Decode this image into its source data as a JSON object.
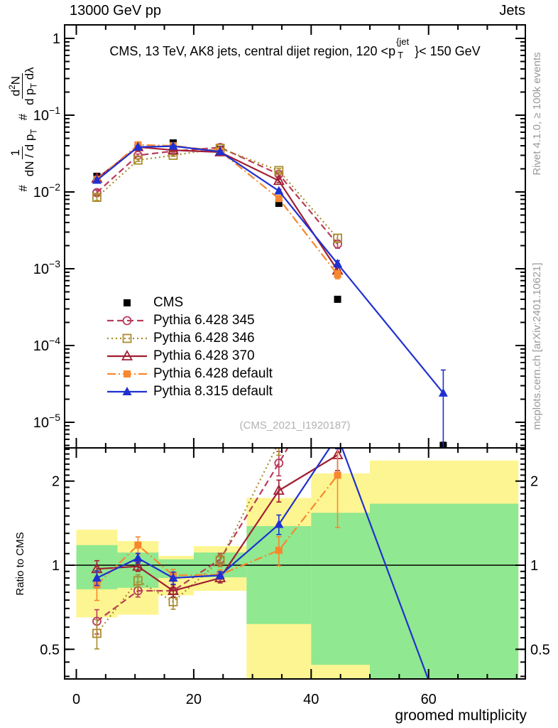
{
  "header": {
    "beam": "13000 GeV pp",
    "process": "Jets"
  },
  "title": {
    "pre": "CMS, 13 TeV, AK8 jets, central dijet region, 120 <p",
    "sup": "{jet",
    "sub": "T",
    "post": "}< 150 GeV"
  },
  "ylabel": {
    "hash1": "#",
    "num1": "1",
    "den1_a": "dN / d p",
    "den1_sub": "T",
    "hash2": "#",
    "num2_a": "d",
    "num2_sup": "2",
    "num2_b": "N",
    "den2_a": "d p",
    "den2_sub": "T",
    "den2_b": " dλ"
  },
  "ratio_label": "Ratio to CMS",
  "xlabel": "groomed multiplicity",
  "watermark": "(CMS_2021_I1920187)",
  "side_texts": {
    "top": "Rivet 4.1.0, ≥ 100k events",
    "bottom": "mcplots.cern.ch [arXiv:2401.10621]"
  },
  "colors": {
    "band_yellow": "#fdf591",
    "band_green": "#90e890",
    "frame": "#000000",
    "gray_text": "#9a9a9a"
  },
  "chart_data": {
    "type": "line",
    "x_label": "groomed multiplicity",
    "x_range": [
      -2,
      76.5
    ],
    "x_ticks_major": [
      0,
      20,
      40,
      60
    ],
    "x_tick_minor_step": 5,
    "main_axis": {
      "scale": "log",
      "ylim": [
        4.6e-06,
        1.5
      ],
      "decade_exponents": [
        0,
        -1,
        -2,
        -3,
        -4,
        -5
      ]
    },
    "ratio_axis": {
      "scale": "log",
      "ylim": [
        0.392,
        2.63
      ],
      "ticks": [
        0.5,
        1,
        2
      ],
      "ref_line": 1
    },
    "x": [
      3.5,
      10.5,
      16.5,
      24.5,
      34.5,
      44.5,
      62.5
    ],
    "series": [
      {
        "name": "CMS",
        "color": "#000000",
        "line": "none",
        "marker": "square-filled",
        "y": [
          0.016,
          0.038,
          0.0435,
          0.036,
          0.0071,
          0.0004,
          5e-06
        ],
        "err": [
          0.04,
          0.02,
          0.02,
          0.02,
          0.04,
          0.08,
          0.1
        ]
      },
      {
        "name": "Pythia 6.428 345",
        "color": "#b93c5a",
        "line": "dash",
        "marker": "circle-open",
        "y": [
          0.0098,
          0.03,
          0.034,
          0.038,
          0.017,
          0.0021,
          null
        ],
        "err": [
          0.08,
          0.04,
          0.03,
          0.03,
          0.06,
          0.12,
          0
        ],
        "ratio": [
          0.63,
          0.81,
          0.81,
          1.05,
          2.32,
          5.3,
          null
        ],
        "rerr": [
          0.1,
          0.05,
          0.05,
          0.05,
          0.1,
          0.2,
          0
        ]
      },
      {
        "name": "Pythia 6.428 346",
        "color": "#aa8c2d",
        "line": "dot",
        "marker": "square-open",
        "y": [
          0.0085,
          0.026,
          0.03,
          0.037,
          0.019,
          0.0025,
          null
        ],
        "err": [
          0.09,
          0.04,
          0.03,
          0.03,
          0.06,
          0.12,
          0
        ],
        "ratio": [
          0.57,
          0.88,
          0.74,
          1.04,
          2.75,
          6.2,
          null
        ],
        "rerr": [
          0.12,
          0.05,
          0.06,
          0.05,
          0.1,
          0.2,
          0
        ]
      },
      {
        "name": "Pythia 6.428 370",
        "color": "#a01e32",
        "line": "solid",
        "marker": "triangle-open",
        "y": [
          0.015,
          0.0385,
          0.035,
          0.033,
          0.014,
          0.00095,
          null
        ],
        "err": [
          0.07,
          0.03,
          0.03,
          0.03,
          0.05,
          0.12,
          0
        ],
        "ratio": [
          0.97,
          0.99,
          0.81,
          0.9,
          1.85,
          2.48,
          null
        ],
        "rerr": [
          0.07,
          0.04,
          0.05,
          0.04,
          0.09,
          0.12,
          0
        ]
      },
      {
        "name": "Pythia 6.428 default",
        "color": "#f8872d",
        "line": "dashdot",
        "marker": "square-filled",
        "y": [
          0.0145,
          0.041,
          0.04,
          0.034,
          0.0082,
          0.00084,
          null
        ],
        "err": [
          0.08,
          0.04,
          0.03,
          0.03,
          0.06,
          0.12,
          0
        ],
        "ratio": [
          0.85,
          1.18,
          0.92,
          0.925,
          1.13,
          2.1,
          null
        ],
        "rerr": [
          0.12,
          0.07,
          0.05,
          0.04,
          0.12,
          0.35,
          0
        ]
      },
      {
        "name": "Pythia 8.315 default",
        "color": "#2030d0",
        "line": "solid",
        "marker": "triangle-filled",
        "y": [
          0.0142,
          0.0385,
          0.0395,
          0.0335,
          0.0103,
          0.00116,
          2.4e-05
        ],
        "err": [
          0.06,
          0.03,
          0.03,
          0.03,
          0.05,
          0.1,
          [
            0.95,
            1.0
          ]
        ],
        "ratio": [
          0.9,
          1.06,
          0.9,
          0.92,
          1.4,
          2.9,
          0.28
        ],
        "rerr": [
          0.06,
          0.04,
          0.05,
          0.03,
          0.08,
          0.1,
          0
        ]
      }
    ],
    "uncertainty_bands": {
      "bin_edges": [
        0,
        7,
        14,
        20,
        29,
        40,
        50,
        75.3
      ],
      "yellow": [
        [
          0.65,
          1.34
        ],
        [
          0.665,
          1.22
        ],
        [
          0.78,
          1.08
        ],
        [
          0.81,
          1.17
        ],
        [
          0.3,
          1.74
        ],
        [
          0.3,
          2.13
        ],
        [
          0.3,
          2.37
        ]
      ],
      "green": [
        [
          0.82,
          1.18
        ],
        [
          0.83,
          1.11
        ],
        [
          0.9,
          1.05
        ],
        [
          0.905,
          1.11
        ],
        [
          0.616,
          1.38
        ],
        [
          0.44,
          1.54
        ],
        [
          0.3,
          1.66
        ]
      ]
    }
  }
}
